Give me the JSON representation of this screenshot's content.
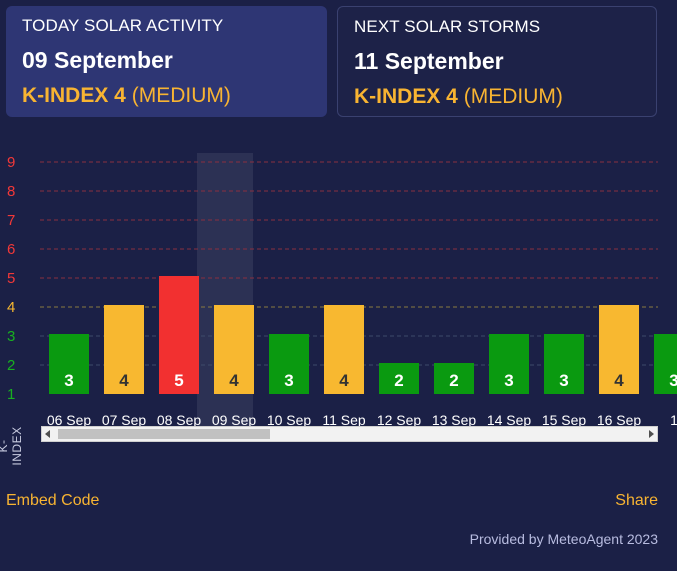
{
  "cards": {
    "today": {
      "title": "TODAY SOLAR ACTIVITY",
      "date": "09 September",
      "k_label": "K-INDEX 4",
      "k_level": "(MEDIUM)"
    },
    "next": {
      "title": "NEXT SOLAR STORMS",
      "date": "11 September",
      "k_label": "K-INDEX 4",
      "k_level": "(MEDIUM)"
    }
  },
  "colors": {
    "low": "#0a9a10",
    "medium": "#f8b830",
    "high": "#f23030",
    "accent": "#f8b432"
  },
  "chart_data": {
    "type": "bar",
    "ylabel": "K-INDEX",
    "ylim": [
      1,
      9
    ],
    "yticks": [
      1,
      2,
      3,
      4,
      5,
      6,
      7,
      8,
      9
    ],
    "categories": [
      "06 Sep",
      "07 Sep",
      "08 Sep",
      "09 Sep",
      "10 Sep",
      "11 Sep",
      "12 Sep",
      "13 Sep",
      "14 Sep",
      "15 Sep",
      "16 Sep",
      "1"
    ],
    "values": [
      3,
      4,
      5,
      4,
      3,
      4,
      2,
      2,
      3,
      3,
      4,
      3
    ],
    "highlighted": "09 Sep"
  },
  "footer": {
    "embed_label": "Embed Code",
    "share_label": "Share",
    "credit": "Provided by MeteoAgent 2023"
  }
}
